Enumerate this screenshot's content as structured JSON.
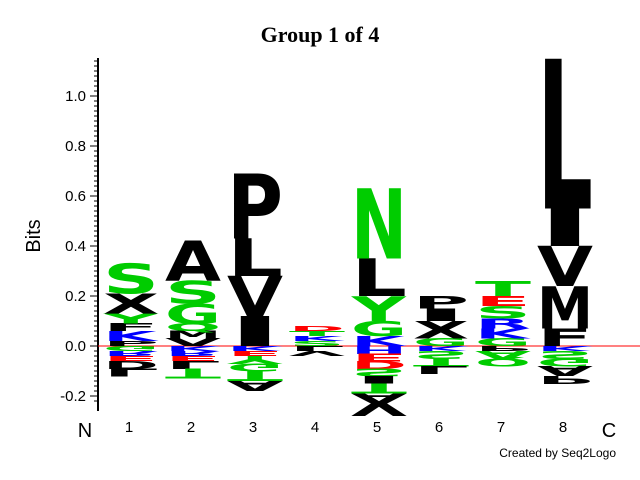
{
  "chart_data": {
    "type": "sequence-logo",
    "title": "Group 1 of 4",
    "ylabel": "Bits",
    "ylim": [
      -0.22,
      1.15
    ],
    "yticks": [
      "-0.2",
      "0.0",
      "0.2",
      "0.4",
      "0.6",
      "0.8",
      "1.0"
    ],
    "n_terminus_label": "N",
    "c_terminus_label": "C",
    "credit": "Created by Seq2Logo",
    "colors": {
      "acidic": "#ff0000",
      "basic": "#0000ff",
      "polar": "#00cc00",
      "hydrophobic": "#000000",
      "baseline": "#ff0000"
    },
    "positions": [
      {
        "label": "1",
        "positive": [
          {
            "letter": "P",
            "color": "hydrophobic",
            "bits": 0.02
          },
          {
            "letter": "K",
            "color": "basic",
            "bits": 0.04
          },
          {
            "letter": "F",
            "color": "hydrophobic",
            "bits": 0.03
          },
          {
            "letter": "Y",
            "color": "polar",
            "bits": 0.04
          },
          {
            "letter": "X",
            "color": "hydrophobic",
            "bits": 0.08
          },
          {
            "letter": "S",
            "color": "polar",
            "bits": 0.12
          }
        ],
        "negative": [
          {
            "letter": "G",
            "color": "polar",
            "bits": 0.02
          },
          {
            "letter": "R",
            "color": "basic",
            "bits": 0.02
          },
          {
            "letter": "E",
            "color": "acidic",
            "bits": 0.02
          },
          {
            "letter": "D",
            "color": "hydrophobic",
            "bits": 0.03
          },
          {
            "letter": "L",
            "color": "hydrophobic",
            "bits": 0.03
          }
        ]
      },
      {
        "label": "2",
        "positive": [
          {
            "letter": "V",
            "color": "hydrophobic",
            "bits": 0.03
          },
          {
            "letter": "M",
            "color": "hydrophobic",
            "bits": 0.03
          },
          {
            "letter": "Q",
            "color": "polar",
            "bits": 0.03
          },
          {
            "letter": "G",
            "color": "polar",
            "bits": 0.08
          },
          {
            "letter": "S",
            "color": "polar",
            "bits": 0.09
          },
          {
            "letter": "A",
            "color": "hydrophobic",
            "bits": 0.16
          }
        ],
        "negative": [
          {
            "letter": "K",
            "color": "basic",
            "bits": 0.02
          },
          {
            "letter": "R",
            "color": "basic",
            "bits": 0.02
          },
          {
            "letter": "E",
            "color": "acidic",
            "bits": 0.02
          },
          {
            "letter": "L",
            "color": "hydrophobic",
            "bits": 0.03
          },
          {
            "letter": "T",
            "color": "polar",
            "bits": 0.04
          }
        ]
      },
      {
        "label": "3",
        "positive": [
          {
            "letter": "I",
            "color": "hydrophobic",
            "bits": 0.12
          },
          {
            "letter": "V",
            "color": "hydrophobic",
            "bits": 0.16
          },
          {
            "letter": "L",
            "color": "hydrophobic",
            "bits": 0.15
          },
          {
            "letter": "P",
            "color": "hydrophobic",
            "bits": 0.26
          }
        ],
        "negative": [
          {
            "letter": "K",
            "color": "basic",
            "bits": 0.02
          },
          {
            "letter": "E",
            "color": "acidic",
            "bits": 0.02
          },
          {
            "letter": "Y",
            "color": "polar",
            "bits": 0.03
          },
          {
            "letter": "G",
            "color": "polar",
            "bits": 0.03
          },
          {
            "letter": "T",
            "color": "polar",
            "bits": 0.04
          },
          {
            "letter": "A",
            "color": "hydrophobic",
            "bits": 0.04
          }
        ]
      },
      {
        "label": "4",
        "positive": [
          {
            "letter": "S",
            "color": "polar",
            "bits": 0.02
          },
          {
            "letter": "K",
            "color": "basic",
            "bits": 0.02
          },
          {
            "letter": "T",
            "color": "polar",
            "bits": 0.02
          },
          {
            "letter": "D",
            "color": "acidic",
            "bits": 0.02
          }
        ],
        "negative": [
          {
            "letter": "L",
            "color": "hydrophobic",
            "bits": 0.02
          },
          {
            "letter": "V",
            "color": "hydrophobic",
            "bits": 0.02
          }
        ]
      },
      {
        "label": "5",
        "positive": [
          {
            "letter": "K",
            "color": "basic",
            "bits": 0.04
          },
          {
            "letter": "G",
            "color": "polar",
            "bits": 0.06
          },
          {
            "letter": "Y",
            "color": "polar",
            "bits": 0.1
          },
          {
            "letter": "L",
            "color": "hydrophobic",
            "bits": 0.15
          },
          {
            "letter": "N",
            "color": "polar",
            "bits": 0.28
          }
        ],
        "negative": [
          {
            "letter": "H",
            "color": "basic",
            "bits": 0.03
          },
          {
            "letter": "E",
            "color": "acidic",
            "bits": 0.03
          },
          {
            "letter": "D",
            "color": "acidic",
            "bits": 0.03
          },
          {
            "letter": "S",
            "color": "polar",
            "bits": 0.03
          },
          {
            "letter": "I",
            "color": "hydrophobic",
            "bits": 0.03
          },
          {
            "letter": "T",
            "color": "polar",
            "bits": 0.04
          },
          {
            "letter": "A",
            "color": "hydrophobic",
            "bits": 0.04
          },
          {
            "letter": "V",
            "color": "hydrophobic",
            "bits": 0.05
          }
        ]
      },
      {
        "label": "6",
        "positive": [
          {
            "letter": "G",
            "color": "polar",
            "bits": 0.03
          },
          {
            "letter": "X",
            "color": "hydrophobic",
            "bits": 0.07
          },
          {
            "letter": "I",
            "color": "hydrophobic",
            "bits": 0.05
          },
          {
            "letter": "P",
            "color": "hydrophobic",
            "bits": 0.05
          }
        ],
        "negative": [
          {
            "letter": "K",
            "color": "basic",
            "bits": 0.02
          },
          {
            "letter": "S",
            "color": "polar",
            "bits": 0.03
          },
          {
            "letter": "T",
            "color": "polar",
            "bits": 0.03
          },
          {
            "letter": "L",
            "color": "hydrophobic",
            "bits": 0.03
          }
        ]
      },
      {
        "label": "7",
        "positive": [
          {
            "letter": "G",
            "color": "polar",
            "bits": 0.03
          },
          {
            "letter": "K",
            "color": "basic",
            "bits": 0.04
          },
          {
            "letter": "R",
            "color": "basic",
            "bits": 0.04
          },
          {
            "letter": "S",
            "color": "polar",
            "bits": 0.05
          },
          {
            "letter": "E",
            "color": "acidic",
            "bits": 0.04
          },
          {
            "letter": "T",
            "color": "polar",
            "bits": 0.06
          }
        ],
        "negative": [
          {
            "letter": "P",
            "color": "hydrophobic",
            "bits": 0.02
          },
          {
            "letter": "A",
            "color": "polar",
            "bits": 0.03
          },
          {
            "letter": "Q",
            "color": "polar",
            "bits": 0.03
          }
        ]
      },
      {
        "label": "8",
        "positive": [
          {
            "letter": "F",
            "color": "hydrophobic",
            "bits": 0.07
          },
          {
            "letter": "M",
            "color": "hydrophobic",
            "bits": 0.17
          },
          {
            "letter": "V",
            "color": "hydrophobic",
            "bits": 0.16
          },
          {
            "letter": "I",
            "color": "hydrophobic",
            "bits": 0.15
          },
          {
            "letter": "L",
            "color": "hydrophobic",
            "bits": 0.6
          }
        ],
        "negative": [
          {
            "letter": "K",
            "color": "basic",
            "bits": 0.02
          },
          {
            "letter": "S",
            "color": "polar",
            "bits": 0.03
          },
          {
            "letter": "G",
            "color": "polar",
            "bits": 0.03
          },
          {
            "letter": "A",
            "color": "hydrophobic",
            "bits": 0.04
          },
          {
            "letter": "P",
            "color": "hydrophobic",
            "bits": 0.03
          }
        ]
      }
    ]
  }
}
